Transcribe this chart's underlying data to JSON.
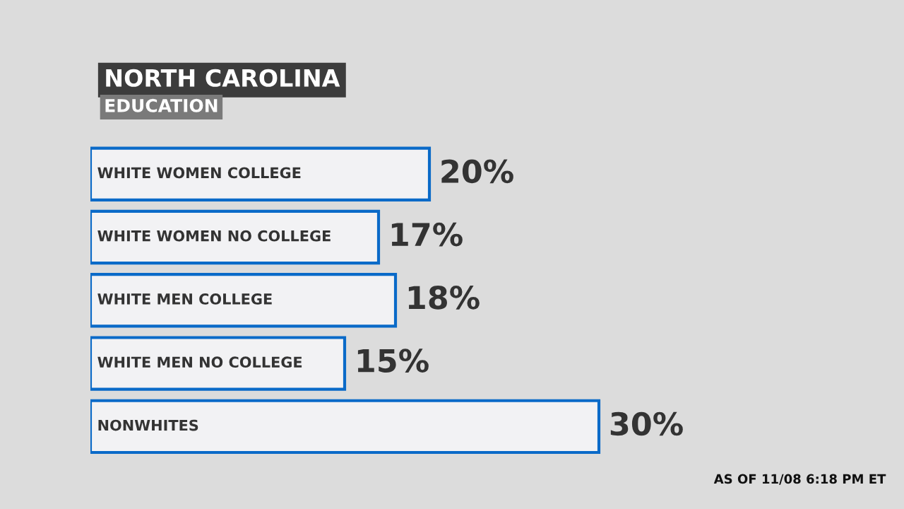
{
  "chart_data": {
    "type": "bar",
    "orientation": "horizontal",
    "title": "NORTH CAROLINA",
    "subtitle": "EDUCATION",
    "categories": [
      "WHITE WOMEN COLLEGE",
      "WHITE WOMEN NO COLLEGE",
      "WHITE MEN COLLEGE",
      "WHITE MEN NO COLLEGE",
      "NONWHITES"
    ],
    "values": [
      20,
      17,
      18,
      15,
      30
    ],
    "value_labels": [
      "20%",
      "17%",
      "18%",
      "15%",
      "30%"
    ],
    "color": "#f2f2f4",
    "legend": false,
    "annotations": [
      "AS OF 11/08 6:18 PM ET"
    ]
  }
}
